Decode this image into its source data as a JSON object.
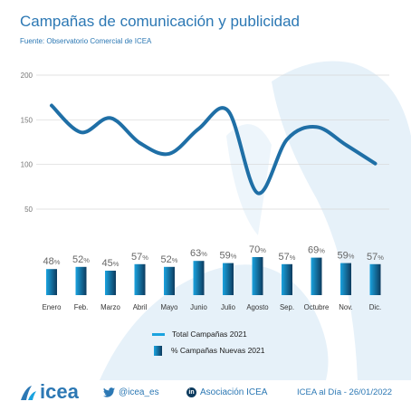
{
  "header": {
    "title": "Campañas de comunicación y publicidad",
    "source": "Fuente: Observatorio Comercial de ICEA"
  },
  "colors": {
    "accent": "#2c78b4",
    "line": "#1f6fa6",
    "bar_light": "#1aa3df",
    "bar_dark": "#0d3b5e",
    "watermark": "#e6f1f9"
  },
  "chart_data": {
    "type": "bar",
    "categories": [
      "Enero",
      "Feb.",
      "Marzo",
      "Abril",
      "Mayo",
      "Junio",
      "Julio",
      "Agosto",
      "Sep.",
      "Octubre",
      "Nov.",
      "Dic."
    ],
    "series": [
      {
        "name": "Total Campañas 2021",
        "type": "line",
        "values": [
          166,
          136,
          152,
          124,
          112,
          140,
          160,
          68,
          128,
          142,
          122,
          101
        ]
      },
      {
        "name": "% Campañas Nuevas 2021",
        "type": "bar",
        "values": [
          48,
          52,
          45,
          57,
          52,
          63,
          59,
          70,
          57,
          69,
          59,
          57
        ],
        "labels": [
          "48%",
          "52%",
          "45%",
          "57%",
          "52%",
          "63%",
          "59%",
          "70%",
          "57%",
          "69%",
          "59%",
          "57%"
        ]
      }
    ],
    "y_ticks": [
      "200",
      "150",
      "100",
      "50"
    ],
    "ylim": [
      50,
      200
    ],
    "grid": true,
    "legend_position": "bottom"
  },
  "legend": {
    "line_label": "Total Campañas 2021",
    "bar_label": "% Campañas Nuevas 2021"
  },
  "footer": {
    "logo_text": "icea",
    "logo_icon": "icea-logo-icon",
    "twitter_icon": "twitter-icon",
    "twitter": "@icea_es",
    "linkedin_icon": "linkedin-icon",
    "linkedin_badge": "in",
    "linkedin": "Asociación ICEA",
    "date": "ICEA al Día - 26/01/2022"
  }
}
